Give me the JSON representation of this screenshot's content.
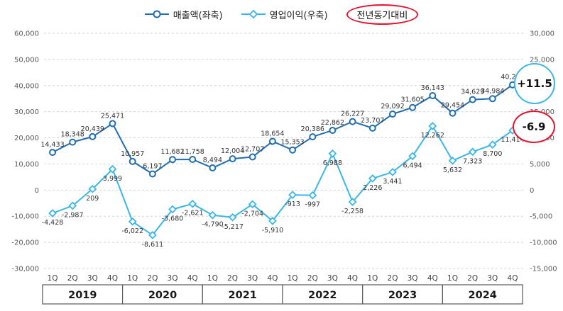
{
  "legend": {
    "revenue": "매출액(좌축)",
    "profit": "영업이익(우축)",
    "yoy": "전년동기대비"
  },
  "annotations": {
    "revenue_yoy": "+11.5",
    "profit_yoy": "-6.9"
  },
  "colors": {
    "revenue": "#1f6db3",
    "profit": "#3bb6e8",
    "yoy_red": "#e8112d",
    "grid": "#d4d4d4",
    "text": "#404040"
  },
  "chart_data": {
    "type": "line",
    "quarter_labels": [
      "1Q",
      "2Q",
      "3Q",
      "4Q"
    ],
    "years": [
      "2019",
      "2020",
      "2021",
      "2022",
      "2023",
      "2024"
    ],
    "left_axis": {
      "min": -30000,
      "max": 60000,
      "step": 10000,
      "tick_labels": [
        "60,000",
        "50,000",
        "40,000",
        "30,000",
        "20,000",
        "10,000",
        "0",
        "-10,000",
        "-20,000",
        "-30,000"
      ]
    },
    "right_axis": {
      "min": -15000,
      "max": 30000,
      "step": 5000,
      "tick_labels": [
        "30,000",
        "25,000",
        "20,000",
        "15,000",
        "10,000",
        "5,000",
        "0",
        "-5,000",
        "-10,000",
        "-15,000"
      ]
    },
    "grid": "horizontal-dashed",
    "legend_position": "top-center",
    "series": [
      {
        "name": "매출액(좌축)",
        "axis": "left",
        "marker": "circle",
        "color": "#1f6db3",
        "label_position": "above",
        "values": [
          14433,
          18348,
          20439,
          25471,
          10957,
          6197,
          11682,
          11758,
          8494,
          12004,
          12707,
          18654,
          15353,
          20386,
          22862,
          26227,
          23707,
          29092,
          31605,
          36143,
          29454,
          34629,
          34984,
          40284
        ]
      },
      {
        "name": "영업이익(우축)",
        "axis": "right",
        "marker": "diamond",
        "color": "#3bb6e8",
        "label_position": "below",
        "values": [
          -4428,
          -2987,
          209,
          3999,
          -6022,
          -8611,
          -3680,
          -2621,
          -4790,
          -5217,
          -2704,
          -5910,
          -913,
          -997,
          6988,
          -2258,
          2226,
          3441,
          6494,
          12262,
          5632,
          7323,
          8700,
          11414
        ]
      }
    ]
  }
}
